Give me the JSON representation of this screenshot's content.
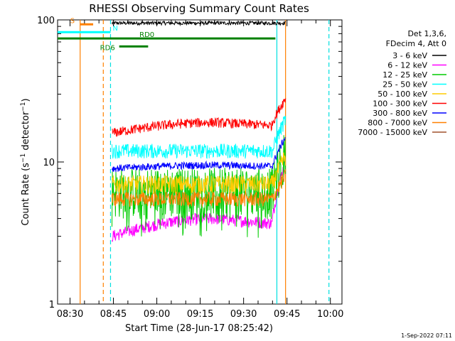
{
  "chart_data": {
    "type": "line",
    "title": "RHESSI Observing Summary Count Rates",
    "xlabel": "Start Time (28-Jun-17 08:25:42)",
    "ylabel_parts": [
      "Count Rate (s",
      "−1",
      " detector",
      "−1",
      ")"
    ],
    "y_scale": "log",
    "ylim": [
      1,
      100
    ],
    "y_ticks": [
      {
        "value": 1,
        "label": "1"
      },
      {
        "value": 10,
        "label": "10"
      },
      {
        "value": 100,
        "label": "100"
      }
    ],
    "xlim": [
      "08:25:42",
      "10:04:00"
    ],
    "x_ticks": [
      {
        "time": "08:30",
        "label": "08:30"
      },
      {
        "time": "08:45",
        "label": "08:45"
      },
      {
        "time": "09:00",
        "label": "09:00"
      },
      {
        "time": "09:15",
        "label": "09:15"
      },
      {
        "time": "09:30",
        "label": "09:30"
      },
      {
        "time": "09:45",
        "label": "09:45"
      },
      {
        "time": "10:00",
        "label": "10:00"
      }
    ],
    "legend": {
      "placement": "right",
      "header": [
        "Det 1,3,6,",
        "FDecim 4, Att 0"
      ],
      "entries": [
        {
          "label": "3 - 6 keV",
          "color": "#000000"
        },
        {
          "label": "6 - 12 keV",
          "color": "#ff00ff"
        },
        {
          "label": "12 - 25 keV",
          "color": "#00cc00"
        },
        {
          "label": "25 - 50 keV",
          "color": "#00ffff"
        },
        {
          "label": "50 - 100 keV",
          "color": "#ffcc00"
        },
        {
          "label": "100 - 300 keV",
          "color": "#ff0000"
        },
        {
          "label": "300 - 800 keV",
          "color": "#0000ff"
        },
        {
          "label": "800 - 7000 keV",
          "color": "#ff8000"
        },
        {
          "label": "7000 - 15000 keV",
          "color": "#a0522d"
        }
      ]
    },
    "series": [
      {
        "name": "3 - 6 keV",
        "color": "#000000",
        "level_start": 95,
        "level_mid": 95,
        "level_end": 95,
        "noise": 0.03
      },
      {
        "name": "6 - 12 keV",
        "color": "#ff00ff",
        "level_start": 3,
        "level_mid": 4,
        "level_end": 10,
        "noise": 0.1
      },
      {
        "name": "12 - 25 keV",
        "color": "#00cc00",
        "level_start": 6.5,
        "level_mid": 6.5,
        "level_end": 12,
        "noise": 0.4
      },
      {
        "name": "25 - 50 keV",
        "color": "#00ffff",
        "level_start": 12,
        "level_mid": 12,
        "level_end": 20,
        "noise": 0.12
      },
      {
        "name": "50 - 100 keV",
        "color": "#ffcc00",
        "level_start": 7,
        "level_mid": 7,
        "level_end": 11,
        "noise": 0.15
      },
      {
        "name": "100 - 300 keV",
        "color": "#ff0000",
        "level_start": 16,
        "level_mid": 19,
        "level_end": 28,
        "noise": 0.08
      },
      {
        "name": "300 - 800 keV",
        "color": "#0000ff",
        "level_start": 9,
        "level_mid": 9.5,
        "level_end": 15,
        "noise": 0.06
      },
      {
        "name": "800 - 7000 keV",
        "color": "#ff8000",
        "level_start": 5.5,
        "level_mid": 5.5,
        "level_end": 8,
        "noise": 0.12
      }
    ],
    "vertical_markers": [
      {
        "time": "08:33:30",
        "color": "#ff8000",
        "style": "solid"
      },
      {
        "time": "08:41:30",
        "color": "#ff8000",
        "style": "dashed"
      },
      {
        "time": "08:44:00",
        "color": "#00e0e0",
        "style": "dashed"
      },
      {
        "time": "09:41:30",
        "color": "#00e0e0",
        "style": "solid"
      },
      {
        "time": "09:44:30",
        "color": "#ff8000",
        "style": "solid"
      },
      {
        "time": "09:59:30",
        "color": "#00e0e0",
        "style": "dashed"
      }
    ],
    "annotations": [
      {
        "label": "S",
        "color": "#ff8000",
        "start": "08:33:30",
        "end": "08:38:00",
        "level": 93
      },
      {
        "label": "N",
        "color": "#00ffff",
        "start": "08:25:42",
        "end": "08:44:00",
        "level": 82
      },
      {
        "label": "RD0",
        "color": "#008000",
        "start": "08:25:42",
        "end": "09:41:00",
        "level": 74
      },
      {
        "label": "RD6",
        "color": "#008000",
        "start": "08:47:00",
        "end": "08:57:00",
        "level": 65
      }
    ],
    "timestamp": "1-Sep-2022 07:11"
  }
}
